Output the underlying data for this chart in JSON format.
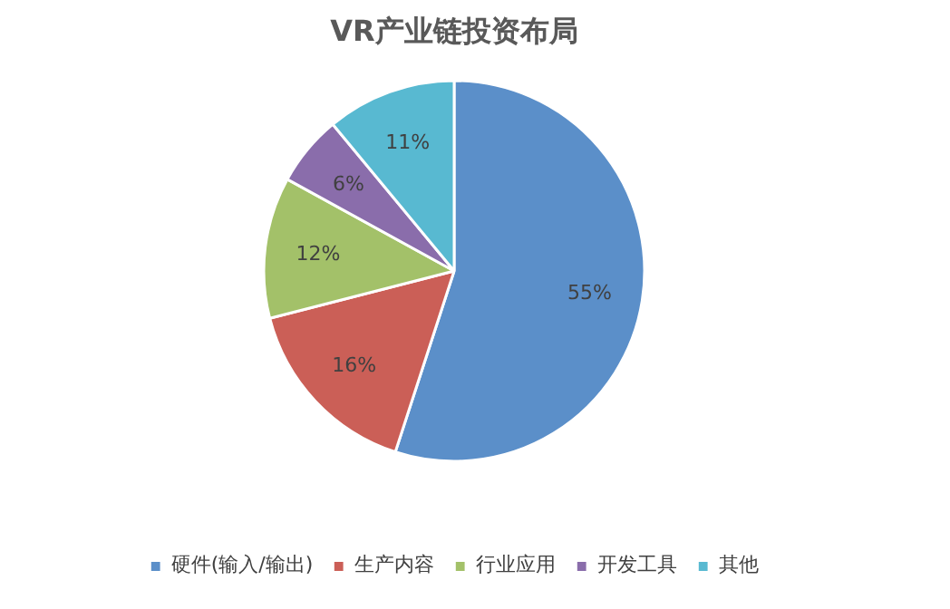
{
  "chart_data": {
    "type": "pie",
    "title": "VR产业链投资布局",
    "categories": [
      "硬件(输入/输出)",
      "生产内容",
      "行业应用",
      "开发工具",
      "其他"
    ],
    "values": [
      55,
      16,
      12,
      6,
      11
    ],
    "value_labels": [
      "55%",
      "16%",
      "12%",
      "6%",
      "11%"
    ],
    "colors": [
      "#5b8fc9",
      "#cb5f57",
      "#a3c169",
      "#8a6dab",
      "#58b9d1"
    ],
    "legend": "bottom"
  }
}
